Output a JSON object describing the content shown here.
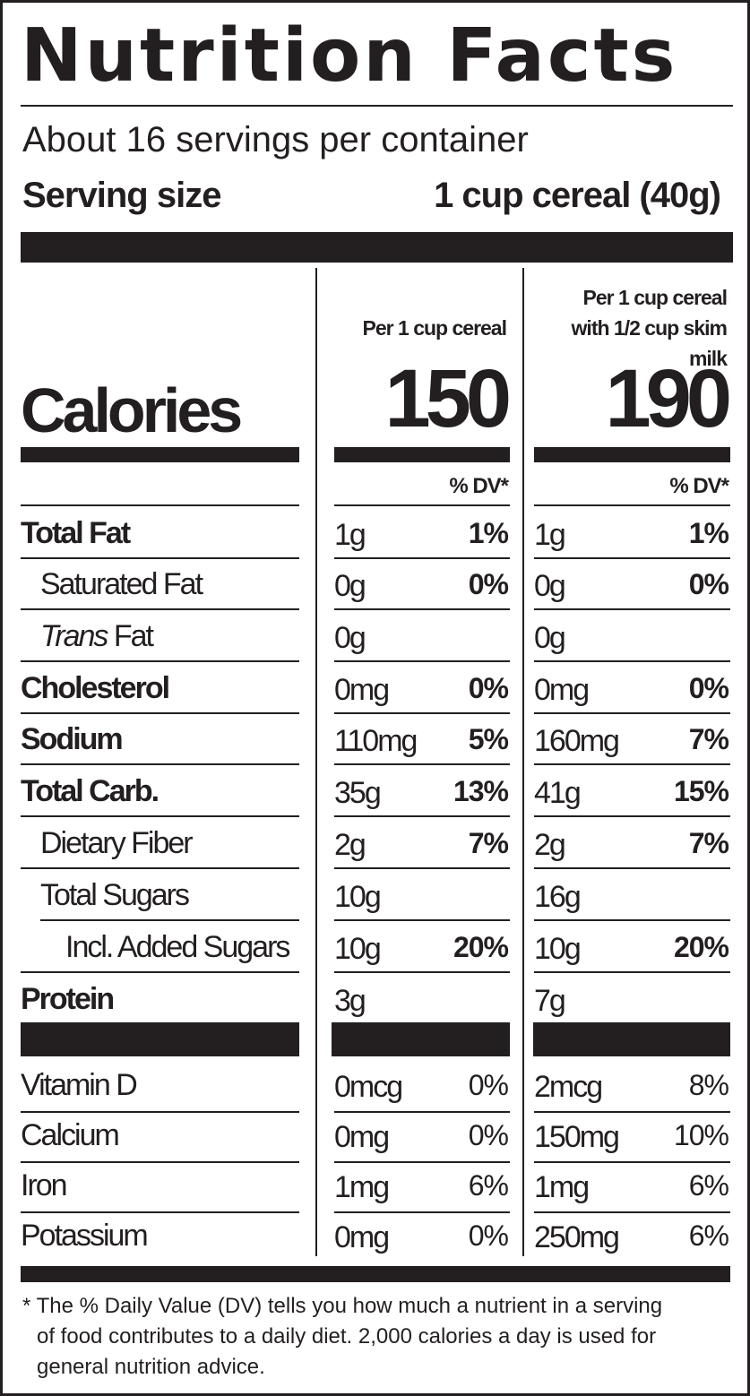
{
  "title": "Nutrition Facts",
  "servings_per_container": "About 16 servings per container",
  "serving_size": {
    "label": "Serving size",
    "value": "1 cup cereal (40g)"
  },
  "columns": [
    {
      "header_line1": "",
      "header_line2": "Per 1 cup cereal",
      "calories": "150",
      "dv_label": "% DV*"
    },
    {
      "header_line1": "Per 1 cup cereal",
      "header_line2": "with 1/2 cup skim milk",
      "calories": "190",
      "dv_label": "% DV*"
    }
  ],
  "calories_label": "Calories",
  "nutrients": [
    {
      "name": "Total Fat",
      "bold": true,
      "indent": 0,
      "c1_amt": "1g",
      "c1_pct": "1%",
      "c2_amt": "1g",
      "c2_pct": "1%"
    },
    {
      "name": "Saturated Fat",
      "bold": false,
      "indent": 1,
      "c1_amt": "0g",
      "c1_pct": "0%",
      "c2_amt": "0g",
      "c2_pct": "0%"
    },
    {
      "name_italic": "Trans",
      "name": " Fat",
      "bold": false,
      "indent": 1,
      "c1_amt": "0g",
      "c1_pct": "",
      "c2_amt": "0g",
      "c2_pct": ""
    },
    {
      "name": "Cholesterol",
      "bold": true,
      "indent": 0,
      "c1_amt": "0mg",
      "c1_pct": "0%",
      "c2_amt": "0mg",
      "c2_pct": "0%"
    },
    {
      "name": "Sodium",
      "bold": true,
      "indent": 0,
      "c1_amt": "110mg",
      "c1_pct": "5%",
      "c2_amt": "160mg",
      "c2_pct": "7%"
    },
    {
      "name": "Total Carb.",
      "bold": true,
      "indent": 0,
      "c1_amt": "35g",
      "c1_pct": "13%",
      "c2_amt": "41g",
      "c2_pct": "15%"
    },
    {
      "name": "Dietary Fiber",
      "bold": false,
      "indent": 1,
      "c1_amt": "2g",
      "c1_pct": "7%",
      "c2_amt": "2g",
      "c2_pct": "7%"
    },
    {
      "name": "Total Sugars",
      "bold": false,
      "indent": 1,
      "c1_amt": "10g",
      "c1_pct": "",
      "c2_amt": "16g",
      "c2_pct": ""
    },
    {
      "name": "Incl. Added Sugars",
      "bold": false,
      "indent": 2,
      "c1_amt": "10g",
      "c1_pct": "20%",
      "c2_amt": "10g",
      "c2_pct": "20%"
    },
    {
      "name": "Protein",
      "bold": true,
      "indent": 0,
      "c1_amt": "3g",
      "c1_pct": "",
      "c2_amt": "7g",
      "c2_pct": ""
    }
  ],
  "vitamins": [
    {
      "name": "Vitamin D",
      "c1_amt": "0mcg",
      "c1_pct": "0%",
      "c2_amt": "2mcg",
      "c2_pct": "8%"
    },
    {
      "name": "Calcium",
      "c1_amt": "0mg",
      "c1_pct": "0%",
      "c2_amt": "150mg",
      "c2_pct": "10%"
    },
    {
      "name": "Iron",
      "c1_amt": "1mg",
      "c1_pct": "6%",
      "c2_amt": "1mg",
      "c2_pct": "6%"
    },
    {
      "name": "Potassium",
      "c1_amt": "0mg",
      "c1_pct": "0%",
      "c2_amt": "250mg",
      "c2_pct": "6%"
    }
  ],
  "footnote_line1": "* The % Daily Value (DV) tells you how much a nutrient in a serving",
  "footnote_line2": "of food contributes to a daily diet. 2,000 calories a day is used for",
  "footnote_line3": "general nutrition advice.",
  "colors": {
    "ink": "#231f20",
    "background": "#ffffff"
  }
}
